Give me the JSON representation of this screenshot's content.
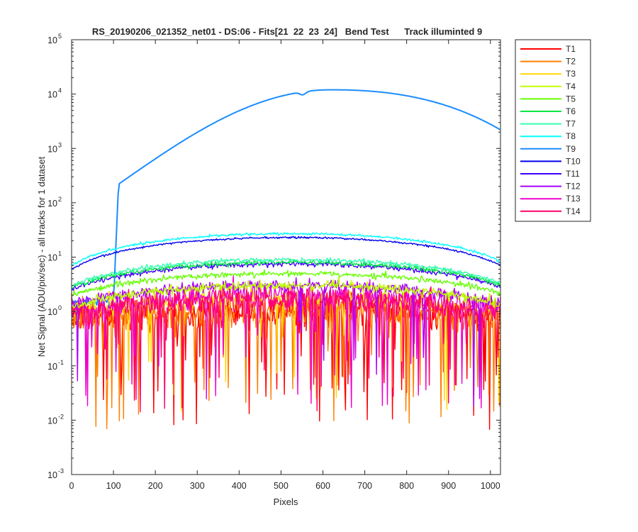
{
  "chart_data": {
    "type": "line",
    "title": "RS_20190206_021352_net01 - DS:06 - Fits[21  22  23  24]   Bend Test      Track illuminted 9",
    "xlabel": "Pixels",
    "ylabel": "Net Signal (ADU/pix/sec) - all tracks for 1 dataset",
    "xlim": [
      0,
      1024
    ],
    "ylim": [
      0.001,
      100000
    ],
    "yscale": "log",
    "grid": false,
    "legend_position": "outside-top-right",
    "x_ticks": [
      "0",
      "100",
      "200",
      "300",
      "400",
      "500",
      "600",
      "700",
      "800",
      "900",
      "1000"
    ],
    "y_tick_exponents": [
      "-3",
      "-2",
      "-1",
      "0",
      "1",
      "2",
      "3",
      "4",
      "5"
    ],
    "y_tick_base": "10",
    "series": [
      {
        "name": "T1",
        "color": "#ff0000",
        "kind": "noise",
        "peak": 1.0,
        "edge": 0.8,
        "noise": 0.35,
        "dipProb": 0.1
      },
      {
        "name": "T2",
        "color": "#ff7f00",
        "kind": "noise",
        "peak": 1.0,
        "edge": 0.7,
        "noise": 0.35,
        "dipProb": 0.08
      },
      {
        "name": "T3",
        "color": "#ffd700",
        "kind": "noise",
        "peak": 1.8,
        "edge": 0.9,
        "noise": 0.22,
        "dipProb": 0.05
      },
      {
        "name": "T4",
        "color": "#bfff00",
        "kind": "noise",
        "peak": 3.0,
        "edge": 1.2,
        "noise": 0.1,
        "dipProb": 0.0
      },
      {
        "name": "T5",
        "color": "#66ff00",
        "kind": "noise",
        "peak": 5.0,
        "edge": 2.0,
        "noise": 0.06,
        "dipProb": 0.0
      },
      {
        "name": "T6",
        "color": "#00e640",
        "kind": "noise",
        "peak": 8.0,
        "edge": 2.8,
        "noise": 0.05,
        "dipProb": 0.0
      },
      {
        "name": "T7",
        "color": "#33ffb0",
        "kind": "noise",
        "peak": 9.0,
        "edge": 3.0,
        "noise": 0.05,
        "dipProb": 0.0
      },
      {
        "name": "T8",
        "color": "#00ffff",
        "kind": "noise",
        "peak": 27.0,
        "edge": 7.0,
        "noise": 0.025,
        "dipProb": 0.0
      },
      {
        "name": "T9",
        "color": "#1a8cff",
        "kind": "main",
        "startX": 100,
        "startY": 220,
        "peak": 12000,
        "peakX": 620,
        "endY": 2200,
        "dipX": 552,
        "dipDepth": 0.12
      },
      {
        "name": "T10",
        "color": "#0000ee",
        "kind": "noise",
        "peak": 23.0,
        "edge": 6.0,
        "noise": 0.02,
        "dipProb": 0.0
      },
      {
        "name": "T11",
        "color": "#4400ff",
        "kind": "noise",
        "peak": 7.5,
        "edge": 2.5,
        "noise": 0.05,
        "dipProb": 0.0
      },
      {
        "name": "T12",
        "color": "#aa00ff",
        "kind": "noise",
        "peak": 3.0,
        "edge": 1.3,
        "noise": 0.12,
        "dipProb": 0.02
      },
      {
        "name": "T13",
        "color": "#ee00cc",
        "kind": "noise",
        "peak": 2.0,
        "edge": 1.0,
        "noise": 0.25,
        "dipProb": 0.07
      },
      {
        "name": "T14",
        "color": "#ff0066",
        "kind": "noise",
        "peak": 1.6,
        "edge": 0.9,
        "noise": 0.28,
        "dipProb": 0.07
      }
    ]
  }
}
